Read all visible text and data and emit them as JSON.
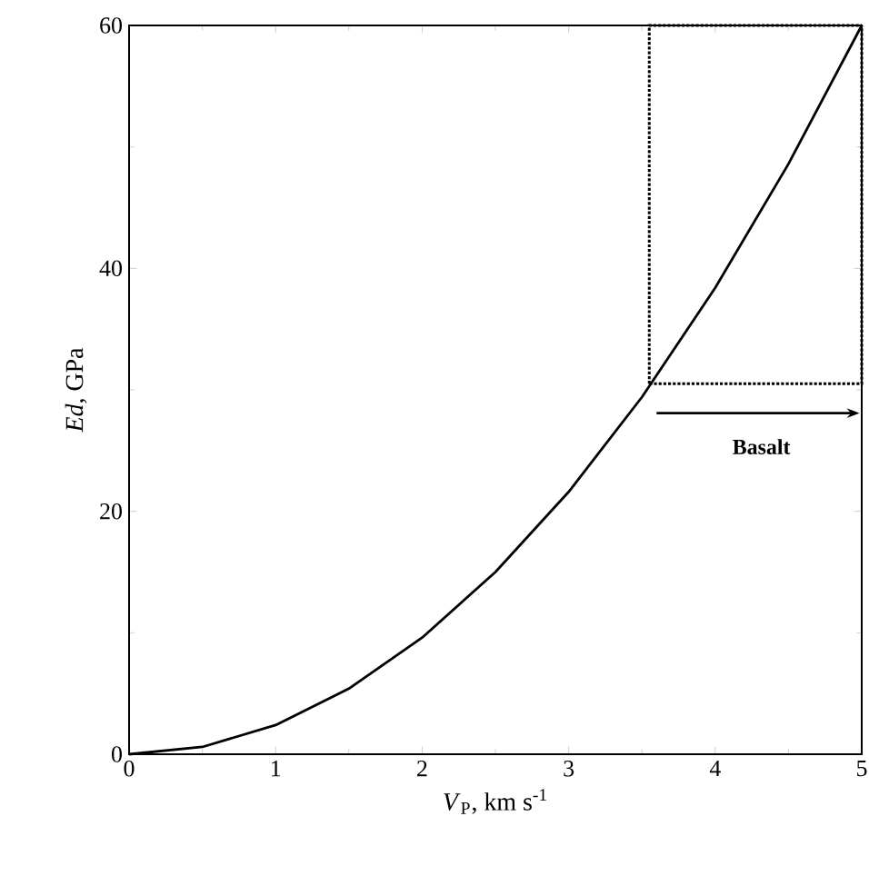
{
  "chart_data": {
    "type": "line",
    "xlabel": "*V*$_{P}$, km s$^{-1}$",
    "ylabel": "*Ed*, GPa",
    "xlim": [
      0,
      5
    ],
    "ylim": [
      0,
      60
    ],
    "xticks": [
      0,
      1,
      2,
      3,
      4,
      5
    ],
    "yticks": [
      0,
      20,
      40,
      60
    ],
    "grid": false,
    "marker": "none",
    "series": [
      {
        "color": "#000000",
        "line_style": "solid",
        "x": [
          0,
          0.5,
          1,
          1.5,
          2,
          2.5,
          3,
          3.5,
          4,
          4.5,
          5
        ],
        "values": [
          0,
          0.6,
          2.4,
          5.4,
          9.6,
          15,
          21.6,
          29.4,
          38.4,
          48.6,
          60
        ]
      }
    ],
    "ref_lines": [
      {
        "axis": "x",
        "value": 3.55,
        "color": "#000000",
        "line_style": "dotted"
      },
      {
        "axis": "y",
        "value": 30.5,
        "color": "#000000",
        "line_style": "dotted"
      }
    ],
    "annotations": [
      "Basalt"
    ]
  }
}
